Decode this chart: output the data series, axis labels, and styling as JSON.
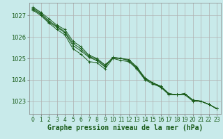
{
  "background_color": "#c8eaea",
  "grid_color": "#b0b0b0",
  "line_color": "#1a5c1a",
  "marker": "+",
  "xlabel": "Graphe pression niveau de la mer (hPa)",
  "xlabel_fontsize": 7,
  "ylim": [
    1022.4,
    1027.6
  ],
  "xlim": [
    -0.5,
    23.5
  ],
  "yticks": [
    1023,
    1024,
    1025,
    1026,
    1027
  ],
  "xticks": [
    0,
    1,
    2,
    3,
    4,
    5,
    6,
    7,
    8,
    9,
    10,
    11,
    12,
    13,
    14,
    15,
    16,
    17,
    18,
    19,
    20,
    21,
    22,
    23
  ],
  "xtick_labels": [
    "0",
    "1",
    "2",
    "3",
    "4",
    "5",
    "6",
    "7",
    "8",
    "9",
    "10",
    "11",
    "12",
    "13",
    "14",
    "15",
    "16",
    "17",
    "18",
    "19",
    "20",
    "21",
    "22",
    "23"
  ],
  "series": [
    [
      1027.25,
      1027.0,
      1026.65,
      1026.35,
      1026.1,
      1025.45,
      1025.2,
      1024.85,
      1024.8,
      1024.5,
      1025.0,
      1024.9,
      1024.85,
      1024.5,
      1024.0,
      1023.8,
      1023.65,
      1023.3,
      1023.3,
      1023.3,
      1023.0,
      1023.0,
      1022.85,
      1022.65
    ],
    [
      1027.3,
      1027.05,
      1026.7,
      1026.45,
      1026.2,
      1025.6,
      1025.35,
      1025.05,
      1024.9,
      1024.6,
      1025.05,
      1025.0,
      1024.9,
      1024.55,
      1024.05,
      1023.85,
      1023.7,
      1023.35,
      1023.3,
      1023.35,
      1023.05,
      1023.0,
      1022.85,
      1022.65
    ],
    [
      1027.35,
      1027.1,
      1026.75,
      1026.5,
      1026.25,
      1025.7,
      1025.45,
      1025.1,
      1024.95,
      1024.65,
      1025.05,
      1025.0,
      1024.95,
      1024.6,
      1024.1,
      1023.85,
      1023.7,
      1023.35,
      1023.3,
      1023.35,
      1023.05,
      1023.0,
      1022.85,
      1022.65
    ],
    [
      1027.4,
      1027.15,
      1026.85,
      1026.55,
      1026.35,
      1025.8,
      1025.55,
      1025.15,
      1025.0,
      1024.7,
      1025.0,
      1025.0,
      1024.9,
      1024.55,
      1024.05,
      1023.85,
      1023.65,
      1023.35,
      1023.3,
      1023.35,
      1023.05,
      1023.0,
      1022.85,
      1022.65
    ]
  ]
}
